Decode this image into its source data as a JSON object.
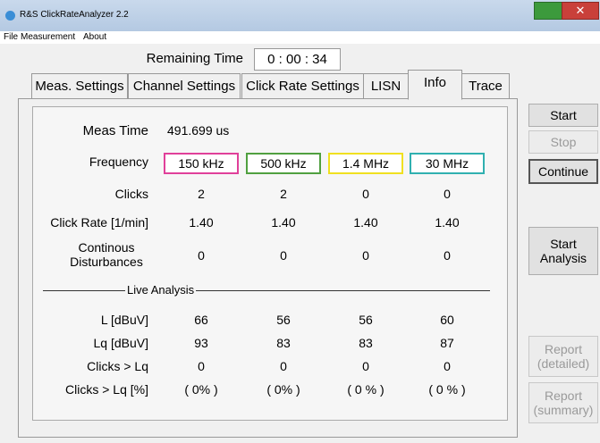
{
  "window": {
    "title": "R&S ClickRateAnalyzer 2.2"
  },
  "menu": [
    "File",
    "Measurement",
    "About"
  ],
  "remaining_time": {
    "label": "Remaining Time",
    "value": "0 : 00 : 34"
  },
  "tabs": [
    "Meas. Settings",
    "Channel Settings",
    "Click Rate Settings",
    "LISN",
    "Info",
    "Trace"
  ],
  "info": {
    "meas_time": {
      "label": "Meas Time",
      "value": "491.699 us"
    },
    "frequency": {
      "label": "Frequency",
      "values": [
        "150 kHz",
        "500 kHz",
        "1.4 MHz",
        "30 MHz"
      ]
    },
    "rows": [
      {
        "label": "Clicks",
        "values": [
          "2",
          "2",
          "0",
          "0"
        ]
      },
      {
        "label": "Click Rate [1/min]",
        "values": [
          "1.40",
          "1.40",
          "1.40",
          "1.40"
        ]
      },
      {
        "label": "Continous Disturbances",
        "values": [
          "0",
          "0",
          "0",
          "0"
        ]
      }
    ],
    "section": "Live Analysis",
    "live_rows": [
      {
        "label": "L [dBuV]",
        "values": [
          "66",
          "56",
          "56",
          "60"
        ]
      },
      {
        "label": "Lq [dBuV]",
        "values": [
          "93",
          "83",
          "83",
          "87"
        ]
      },
      {
        "label": "Clicks > Lq",
        "values": [
          "0",
          "0",
          "0",
          "0"
        ]
      },
      {
        "label": "Clicks > Lq [%]",
        "values": [
          "( 0% )",
          "( 0% )",
          "( 0 % )",
          "( 0 % )"
        ]
      }
    ]
  },
  "buttons": [
    "Start",
    "Stop",
    "Continue",
    "Start Analysis",
    "Report (detailed)",
    "Report (summary)"
  ]
}
